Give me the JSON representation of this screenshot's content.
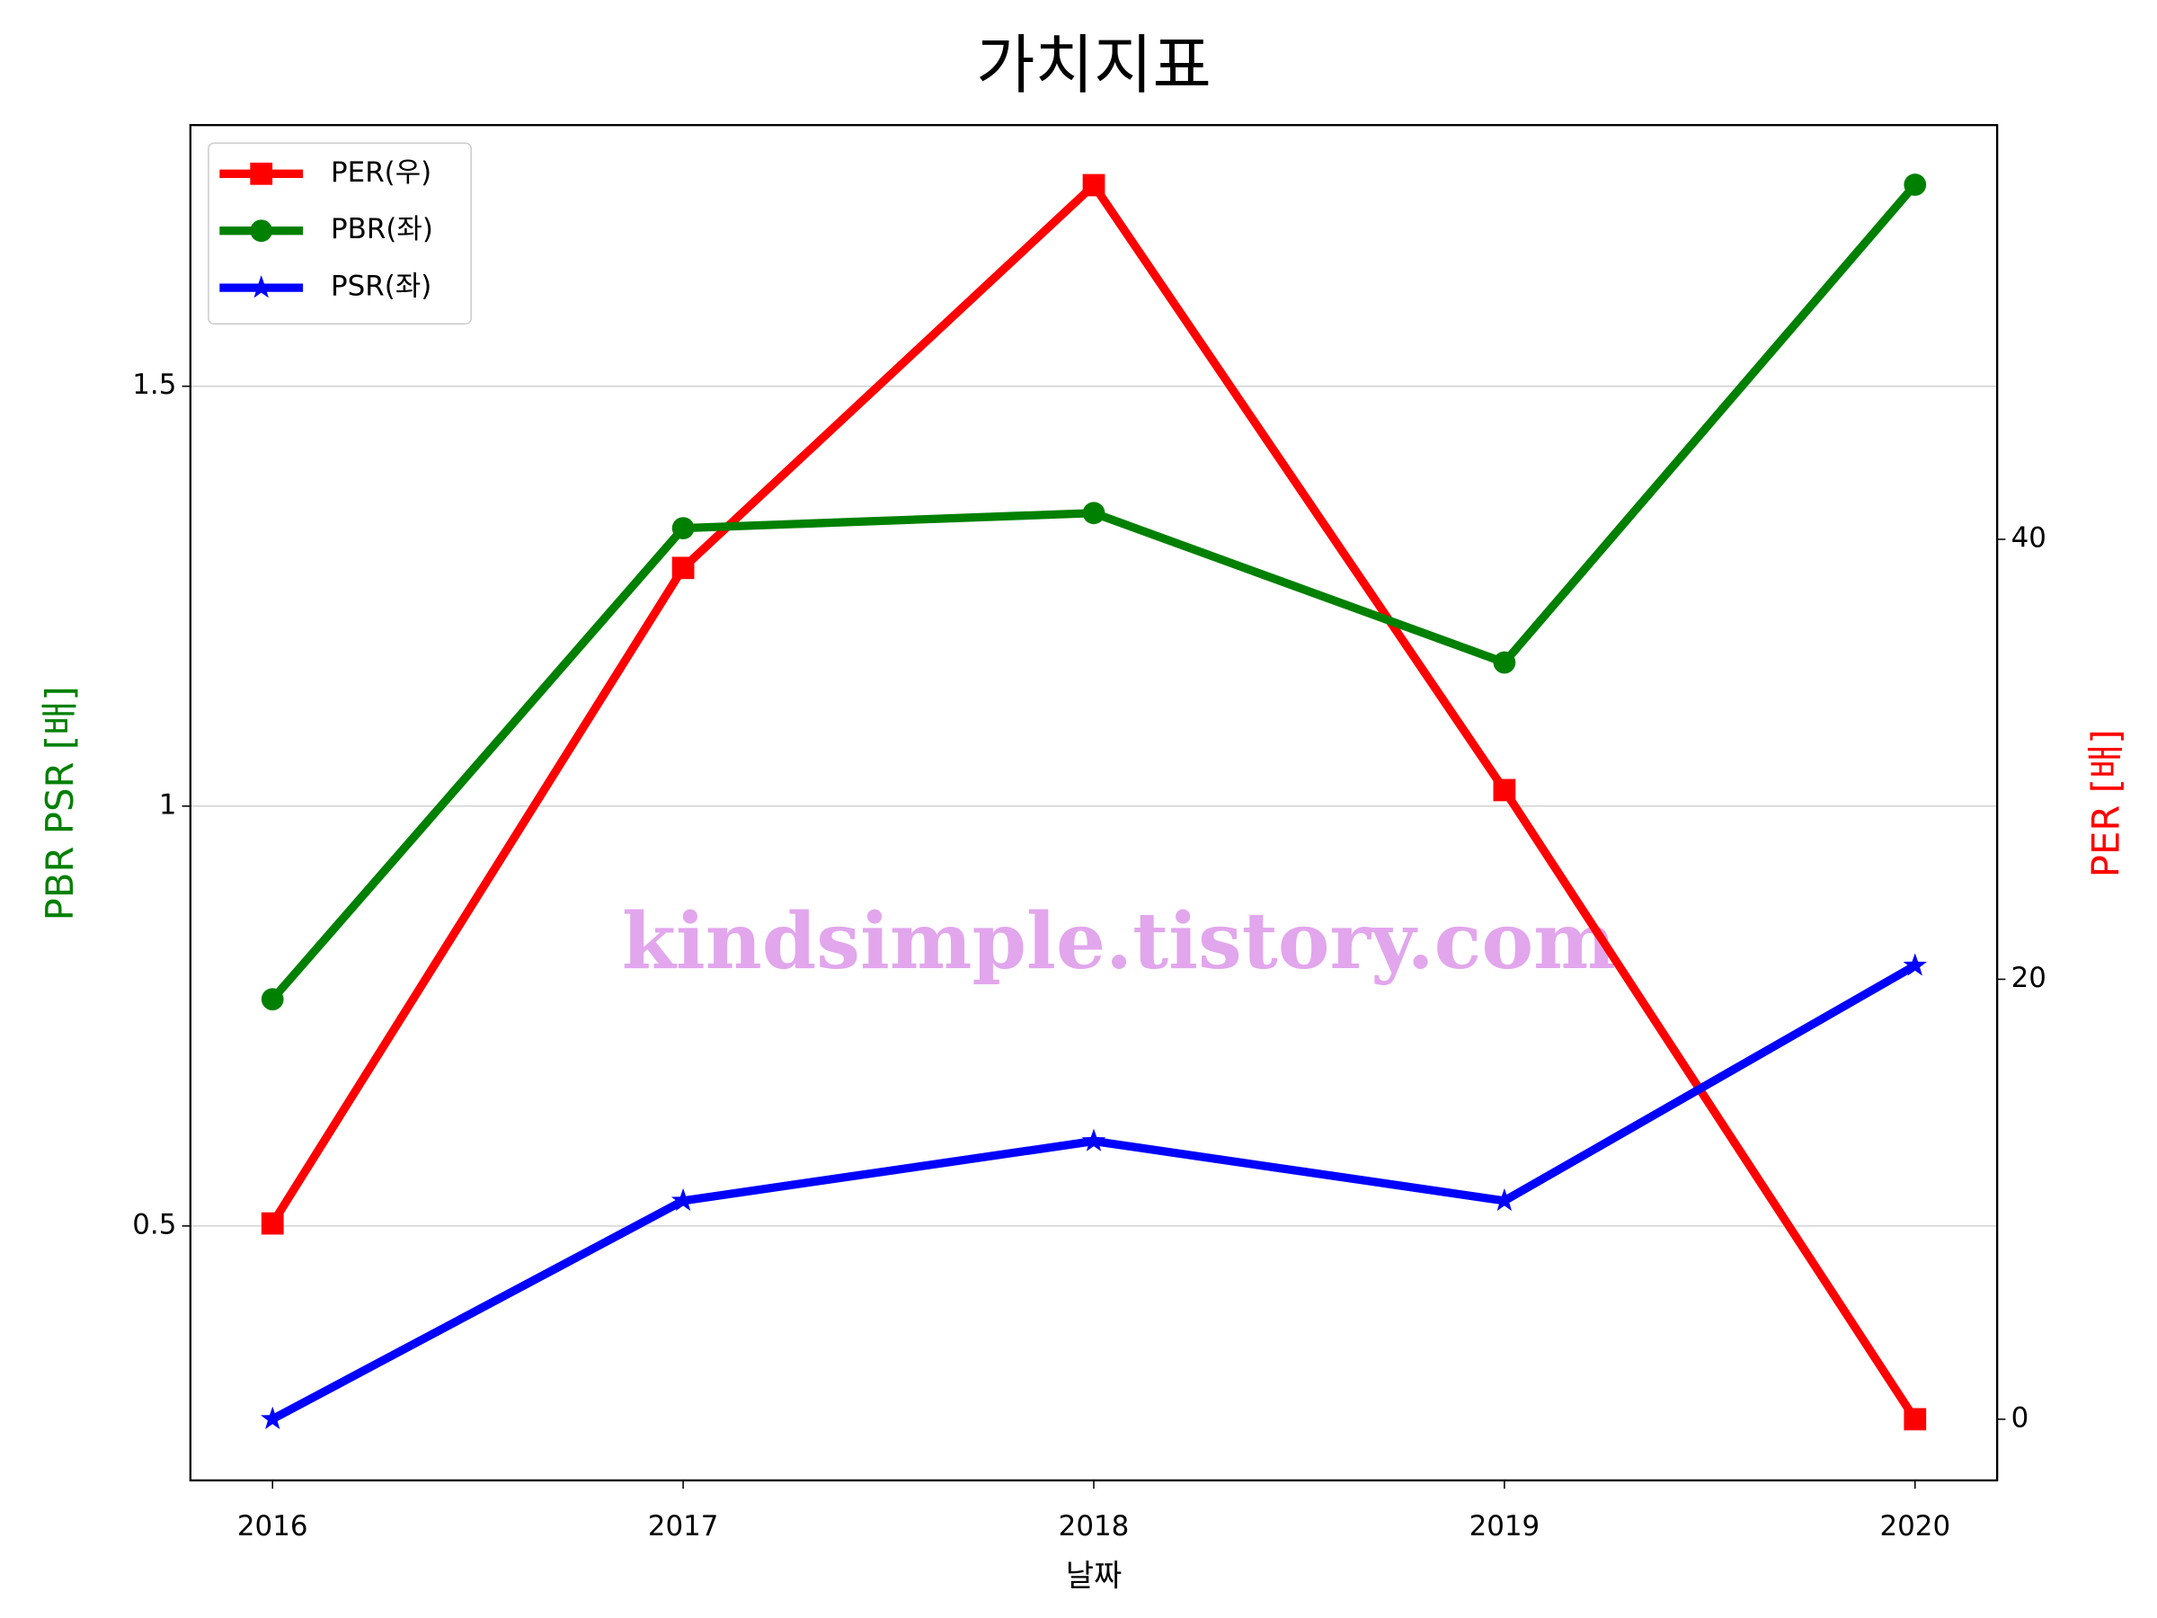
{
  "chart_data": {
    "type": "line",
    "title": "가치지표",
    "x": [
      2016,
      2017,
      2018,
      2019,
      2020
    ],
    "xlim": [
      2015.8,
      2020.2
    ],
    "xticks": [
      2016,
      2017,
      2018,
      2019,
      2020
    ],
    "xlabel": "날짜",
    "ylabel": "PBR PSR [배]",
    "ylabel_color": "green",
    "y2label": "PER [배]",
    "y2label_color": "red",
    "ylim": [
      0.197,
      1.811
    ],
    "yticks": [
      0.5,
      1.0,
      1.5
    ],
    "y2lim": [
      -2.78,
      58.83
    ],
    "y2ticks": [
      0,
      20,
      40
    ],
    "grid": true,
    "legend": "upper left",
    "annotation": "kindsimple.tistory.com",
    "series": [
      {
        "name": "PER(우)",
        "color": "red",
        "marker": "square",
        "axis": "y2",
        "values": [
          8.9,
          38.7,
          56.1,
          28.6,
          0
        ]
      },
      {
        "name": "PBR(좌)",
        "color": "green",
        "marker": "circle",
        "values": [
          0.77,
          1.331,
          1.349,
          1.171,
          1.74
        ]
      },
      {
        "name": "PSR(좌)",
        "color": "blue",
        "marker": "star",
        "values": [
          0.27,
          0.53,
          0.601,
          0.53,
          0.81
        ]
      }
    ]
  }
}
